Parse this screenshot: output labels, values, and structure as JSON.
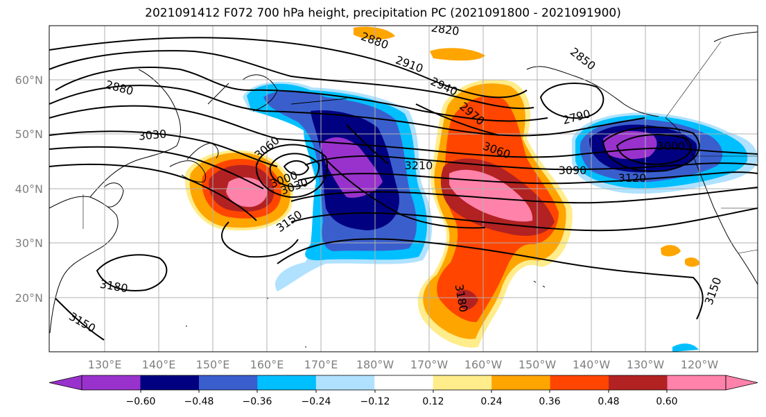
{
  "title": "2021091412 F072 700 hPa height, precipitation PC (2021091800 - 2021091900)",
  "lat_labels": [
    "60°N",
    "50°N",
    "40°N",
    "30°N",
    "20°N"
  ],
  "lon_labels": [
    "130°E",
    "140°E",
    "150°E",
    "160°E",
    "170°E",
    "180°W",
    "170°W",
    "160°W",
    "150°W",
    "140°W",
    "130°W",
    "120°W"
  ],
  "height_contour_labels": [
    "2820",
    "2850",
    "2880",
    "2880",
    "2910",
    "2940",
    "2970",
    "2790",
    "3030",
    "3060",
    "3060",
    "3000",
    "3030",
    "3090",
    "3120",
    "3000",
    "3210",
    "3150",
    "3180",
    "3180",
    "3150",
    "3150"
  ],
  "colorbar": {
    "tick_labels": [
      "−0.60",
      "−0.48",
      "−0.36",
      "−0.24",
      "−0.12",
      "0.12",
      "0.24",
      "0.36",
      "0.48",
      "0.60"
    ],
    "colors": [
      "#9932cc",
      "#000080",
      "#3a5fcd",
      "#00bfff",
      "#b0e2ff",
      "#ffffff",
      "#ffec8b",
      "#ffa500",
      "#ff4500",
      "#b22222",
      "#ff82ab",
      "#ff82ab"
    ]
  }
}
